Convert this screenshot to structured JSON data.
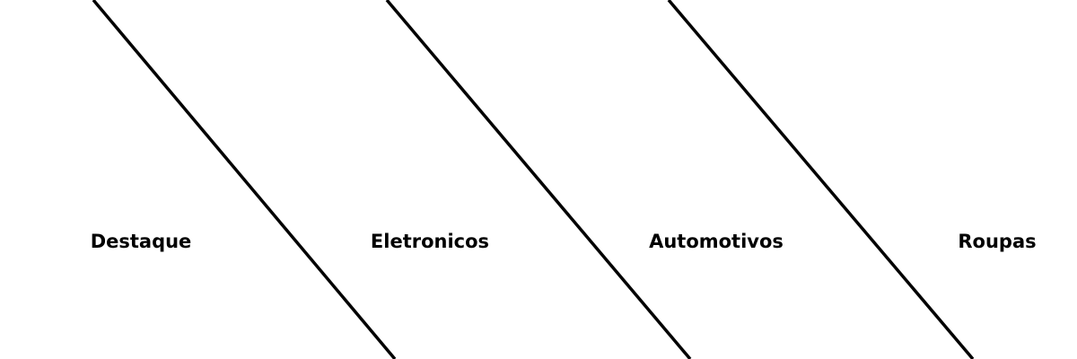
{
  "nav": {
    "items": [
      {
        "label": "Destaque"
      },
      {
        "label": "Eletronicos"
      },
      {
        "label": "Automotivos"
      },
      {
        "label": "Roupas"
      }
    ]
  },
  "colors": {
    "background": "#ffffff",
    "text": "#000000",
    "divider": "#000000"
  }
}
